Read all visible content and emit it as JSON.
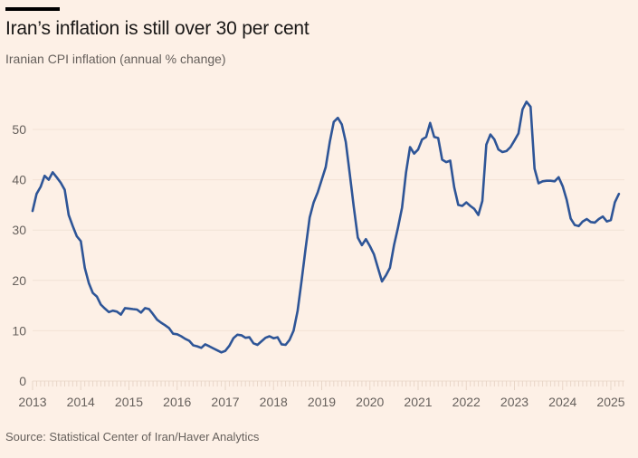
{
  "header": {
    "title": "Iran’s inflation is still over 30 per cent",
    "subtitle": "Iranian CPI inflation (annual % change)"
  },
  "footer": {
    "source": "Source: Statistical Center of Iran/Haver Analytics"
  },
  "colors": {
    "background": "#fdf0e6",
    "line": "#2e5597",
    "grid": "#f2e2d5",
    "text": "#66605c",
    "title": "#1a1817"
  },
  "chart_data": {
    "type": "line",
    "title": "Iran’s inflation is still over 30 per cent",
    "subtitle": "Iranian CPI inflation (annual % change)",
    "xlabel": "",
    "ylabel": "",
    "ylim": [
      0,
      55
    ],
    "yticks": [
      0,
      10,
      20,
      30,
      40,
      50
    ],
    "xticks": [
      "2013",
      "2014",
      "2015",
      "2016",
      "2017",
      "2018",
      "2019",
      "2020",
      "2021",
      "2022",
      "2023",
      "2024",
      "2025"
    ],
    "grid": true,
    "legend": "none",
    "x_start": "2013-01",
    "x_frequency": "monthly",
    "series": [
      {
        "name": "Iranian CPI inflation",
        "values": [
          33.8,
          37.2,
          38.6,
          40.8,
          40.0,
          41.5,
          40.5,
          39.4,
          38.0,
          33.0,
          30.8,
          28.8,
          27.8,
          22.5,
          19.5,
          17.5,
          16.8,
          15.2,
          14.4,
          13.7,
          14.0,
          13.8,
          13.2,
          14.5,
          14.4,
          14.3,
          14.2,
          13.6,
          14.5,
          14.3,
          13.3,
          12.2,
          11.6,
          11.1,
          10.5,
          9.4,
          9.3,
          8.9,
          8.4,
          8.0,
          7.1,
          6.9,
          6.6,
          7.3,
          6.9,
          6.5,
          6.1,
          5.7,
          6.0,
          7.0,
          8.5,
          9.2,
          9.1,
          8.6,
          8.7,
          7.5,
          7.2,
          7.9,
          8.6,
          8.9,
          8.5,
          8.7,
          7.3,
          7.2,
          8.2,
          10.0,
          14.0,
          20.0,
          26.5,
          32.5,
          35.5,
          37.5,
          40.0,
          42.5,
          47.5,
          51.5,
          52.3,
          51.0,
          47.5,
          41.0,
          34.5,
          28.5,
          27.0,
          28.2,
          26.8,
          25.2,
          22.5,
          19.8,
          21.0,
          22.5,
          27.0,
          30.5,
          34.5,
          41.5,
          46.5,
          45.2,
          46.0,
          48.0,
          48.5,
          51.3,
          48.5,
          48.3,
          44.0,
          43.5,
          43.8,
          38.5,
          35.0,
          34.8,
          35.5,
          34.8,
          34.2,
          33.0,
          35.8,
          47.0,
          49.0,
          48.0,
          46.0,
          45.5,
          45.7,
          46.5,
          47.8,
          49.2,
          54.0,
          55.5,
          54.5,
          42.2,
          39.3,
          39.7,
          39.8,
          39.8,
          39.7,
          40.5,
          38.7,
          36.0,
          32.3,
          31.0,
          30.8,
          31.7,
          32.2,
          31.6,
          31.5,
          32.2,
          32.7,
          31.7,
          32.0,
          35.5,
          37.2
        ]
      }
    ]
  }
}
